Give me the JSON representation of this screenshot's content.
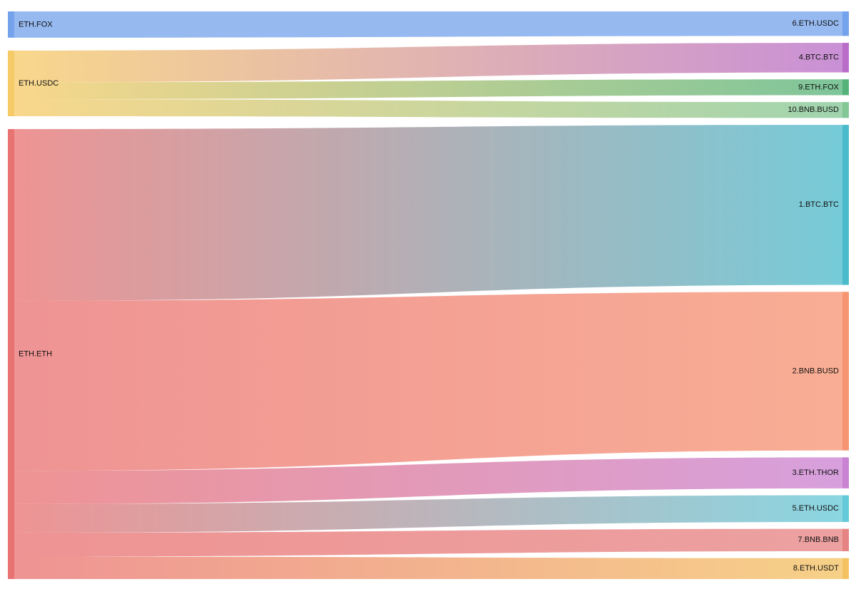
{
  "chart_data": {
    "type": "sankey",
    "sources": [
      {
        "id": "src-eth-fox",
        "label": "ETH.FOX",
        "color": "#6d9eeb"
      },
      {
        "id": "src-eth-usdc",
        "label": "ETH.USDC",
        "color": "#f6c85f"
      },
      {
        "id": "src-eth-eth",
        "label": "ETH.ETH",
        "color": "#e86a6a"
      }
    ],
    "targets": [
      {
        "id": "tgt-6-eth-usdc",
        "label": "6.ETH.USDC",
        "color": "#6d9eeb"
      },
      {
        "id": "tgt-4-btc-btc",
        "label": "4.BTC.BTC",
        "color": "#b565c6"
      },
      {
        "id": "tgt-9-eth-fox",
        "label": "9.ETH.FOX",
        "color": "#4caf73"
      },
      {
        "id": "tgt-10-bnb-busd",
        "label": "10.BNB.BUSD",
        "color": "#7bc48f"
      },
      {
        "id": "tgt-1-btc-btc",
        "label": "1.BTC.BTC",
        "color": "#41b7c9"
      },
      {
        "id": "tgt-2-bnb-busd",
        "label": "2.BNB.BUSD",
        "color": "#f78e6a"
      },
      {
        "id": "tgt-3-eth-thor",
        "label": "3.ETH.THOR",
        "color": "#c77bd0"
      },
      {
        "id": "tgt-5-eth-usdc",
        "label": "5.ETH.USDC",
        "color": "#5cc6d6"
      },
      {
        "id": "tgt-7-bnb-bnb",
        "label": "7.BNB.BNB",
        "color": "#e57c7c"
      },
      {
        "id": "tgt-8-eth-usdt",
        "label": "8.ETH.USDT",
        "color": "#f4bf5a"
      }
    ],
    "links": [
      {
        "source": 0,
        "target": 0,
        "value": 34
      },
      {
        "source": 1,
        "target": 1,
        "value": 41
      },
      {
        "source": 1,
        "target": 2,
        "value": 22
      },
      {
        "source": 1,
        "target": 3,
        "value": 22
      },
      {
        "source": 2,
        "target": 4,
        "value": 222
      },
      {
        "source": 2,
        "target": 5,
        "value": 220
      },
      {
        "source": 2,
        "target": 6,
        "value": 43
      },
      {
        "source": 2,
        "target": 7,
        "value": 37
      },
      {
        "source": 2,
        "target": 8,
        "value": 31
      },
      {
        "source": 2,
        "target": 9,
        "value": 29
      }
    ]
  }
}
